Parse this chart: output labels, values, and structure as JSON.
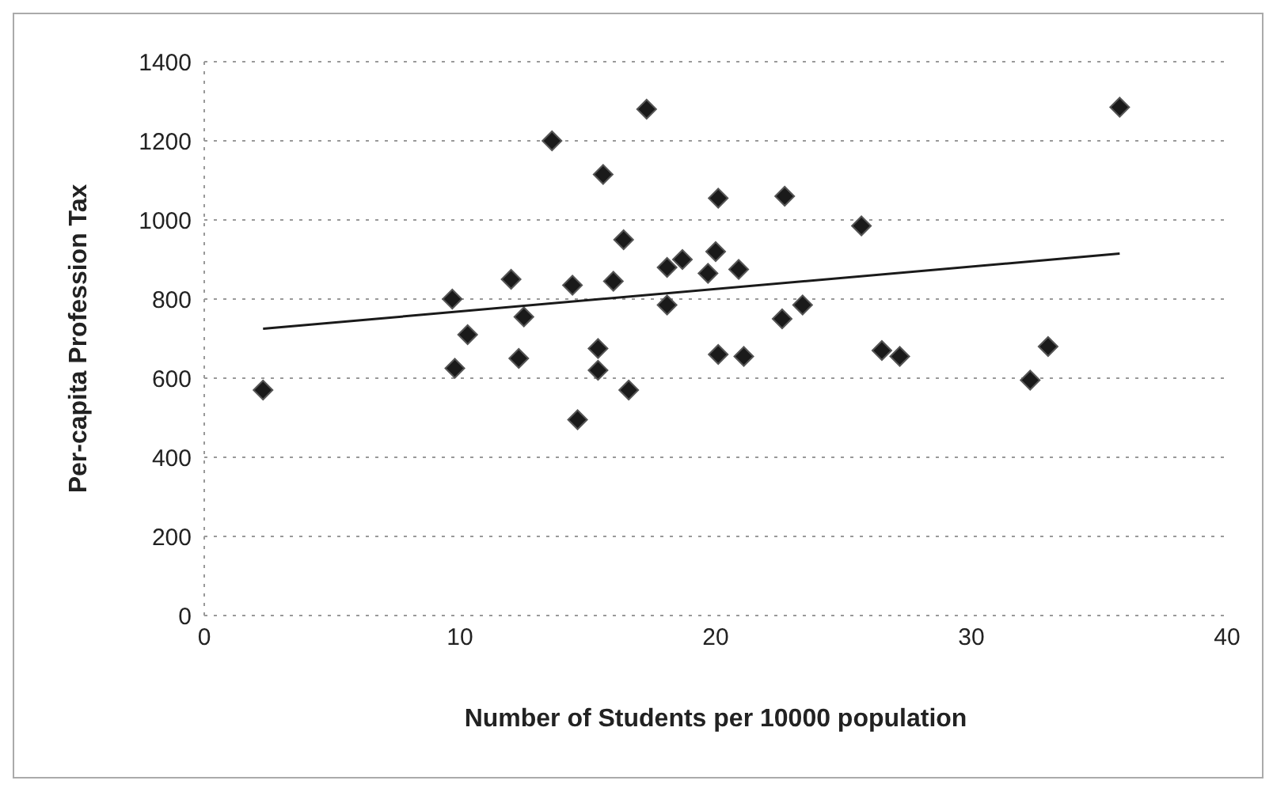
{
  "chart_data": {
    "type": "scatter",
    "xlabel": "Number of Students per 10000 population",
    "ylabel": "Per-capita Profession Tax",
    "xlim": [
      0,
      40
    ],
    "xticks": [
      0,
      10,
      20,
      30,
      40
    ],
    "ylim": [
      0,
      1400
    ],
    "yticks": [
      0,
      200,
      400,
      600,
      800,
      1000,
      1200,
      1400
    ],
    "grid": "y",
    "marker": "diamond",
    "series": [
      {
        "color": "#1a1a1a",
        "x": [
          2.3,
          9.7,
          10.3,
          9.8,
          12.0,
          12.3,
          12.5,
          13.6,
          14.4,
          14.6,
          15.4,
          15.4,
          15.6,
          16.0,
          16.4,
          16.6,
          17.3,
          18.1,
          18.1,
          18.7,
          19.7,
          20.1,
          20.1,
          20.0,
          22.7,
          25.7,
          20.9,
          23.4,
          22.6,
          21.1,
          26.5,
          27.2,
          33.0,
          32.3,
          35.8
        ],
        "values": [
          570,
          800,
          710,
          625,
          850,
          650,
          755,
          1200,
          835,
          495,
          675,
          620,
          1115,
          845,
          950,
          570,
          1280,
          785,
          880,
          900,
          865,
          1055,
          660,
          920,
          1060,
          985,
          875,
          785,
          750,
          655,
          670,
          655,
          680,
          595,
          1285
        ]
      },
      {
        "type": "line",
        "color": "#1a1a1a",
        "x": [
          2.3,
          35.8
        ],
        "values": [
          725,
          915
        ],
        "marker": "none",
        "line_style": "solid"
      }
    ]
  }
}
